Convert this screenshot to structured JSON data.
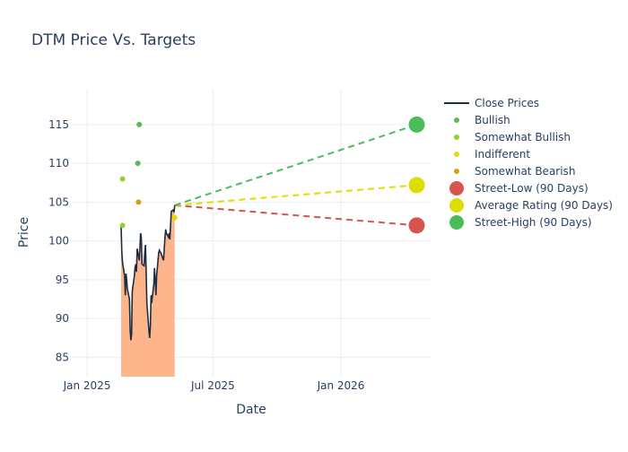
{
  "chart_data": {
    "type": "line",
    "title": "DTM Price Vs. Targets",
    "xlabel": "Date",
    "ylabel": "Price",
    "xlim": [
      "2024-12-10",
      "2026-05-10"
    ],
    "ylim": [
      82.5,
      119.5
    ],
    "x_ticks": [
      {
        "date": "2025-01-01",
        "label": "Jan 2025"
      },
      {
        "date": "2025-07-01",
        "label": "Jul 2025"
      },
      {
        "date": "2026-01-01",
        "label": "Jan 2026"
      }
    ],
    "y_ticks": [
      85,
      90,
      95,
      100,
      105,
      110,
      115
    ],
    "grid": true,
    "legend_position": "right",
    "series": [
      {
        "name": "Close Prices",
        "kind": "line",
        "color": "#1f2d3d",
        "fill_color": "#ffb58c",
        "points": [
          [
            "2025-02-19",
            101.8
          ],
          [
            "2025-02-20",
            98.5
          ],
          [
            "2025-02-21",
            97.2
          ],
          [
            "2025-02-24",
            95.5
          ],
          [
            "2025-02-25",
            93.0
          ],
          [
            "2025-02-26",
            95.8
          ],
          [
            "2025-02-27",
            95.0
          ],
          [
            "2025-02-28",
            93.8
          ],
          [
            "2025-03-03",
            92.5
          ],
          [
            "2025-03-04",
            88.5
          ],
          [
            "2025-03-05",
            87.2
          ],
          [
            "2025-03-06",
            88.0
          ],
          [
            "2025-03-07",
            93.5
          ],
          [
            "2025-03-10",
            95.5
          ],
          [
            "2025-03-11",
            96.5
          ],
          [
            "2025-03-12",
            97.0
          ],
          [
            "2025-03-13",
            96.0
          ],
          [
            "2025-03-14",
            99.0
          ],
          [
            "2025-03-17",
            97.5
          ],
          [
            "2025-03-18",
            99.2
          ],
          [
            "2025-03-19",
            101.0
          ],
          [
            "2025-03-20",
            100.5
          ],
          [
            "2025-03-21",
            97.0
          ],
          [
            "2025-03-24",
            96.8
          ],
          [
            "2025-03-25",
            98.5
          ],
          [
            "2025-03-26",
            99.5
          ],
          [
            "2025-03-27",
            96.0
          ],
          [
            "2025-03-28",
            92.0
          ],
          [
            "2025-03-31",
            88.5
          ],
          [
            "2025-04-01",
            87.5
          ],
          [
            "2025-04-02",
            89.0
          ],
          [
            "2025-04-03",
            93.0
          ],
          [
            "2025-04-04",
            92.0
          ],
          [
            "2025-04-07",
            94.5
          ],
          [
            "2025-04-08",
            96.5
          ],
          [
            "2025-04-09",
            95.0
          ],
          [
            "2025-04-10",
            93.0
          ],
          [
            "2025-04-11",
            95.5
          ],
          [
            "2025-04-14",
            98.5
          ],
          [
            "2025-04-15",
            98.8
          ],
          [
            "2025-04-16",
            98.6
          ],
          [
            "2025-04-17",
            98.5
          ],
          [
            "2025-04-21",
            97.5
          ],
          [
            "2025-04-22",
            99.0
          ],
          [
            "2025-04-23",
            100.5
          ],
          [
            "2025-04-24",
            101.5
          ],
          [
            "2025-04-25",
            101.0
          ],
          [
            "2025-04-28",
            100.5
          ],
          [
            "2025-04-29",
            101.0
          ],
          [
            "2025-04-30",
            100.2
          ],
          [
            "2025-05-01",
            102.0
          ],
          [
            "2025-05-02",
            103.8
          ],
          [
            "2025-05-05",
            104.0
          ],
          [
            "2025-05-06",
            103.7
          ],
          [
            "2025-05-07",
            104.6
          ]
        ]
      },
      {
        "name": "Bullish",
        "kind": "markers",
        "color": "#5cb85c",
        "points": [
          [
            "2025-03-15",
            110.0
          ],
          [
            "2025-03-17",
            115.0
          ]
        ]
      },
      {
        "name": "Somewhat Bullish",
        "kind": "markers",
        "color": "#9acd32",
        "points": [
          [
            "2025-02-21",
            108.0
          ],
          [
            "2025-02-21",
            102.0
          ]
        ]
      },
      {
        "name": "Indifferent",
        "kind": "markers",
        "color": "#e0e000",
        "points": [
          [
            "2025-05-07",
            103.0
          ]
        ]
      },
      {
        "name": "Somewhat Bearish",
        "kind": "markers",
        "color": "#d4a017",
        "points": [
          [
            "2025-03-16",
            105.0
          ]
        ]
      },
      {
        "name": "Street-Low (90 Days)",
        "kind": "target",
        "color": "#d9534f",
        "from": [
          "2025-05-07",
          104.6
        ],
        "to": [
          "2026-04-20",
          102.0
        ]
      },
      {
        "name": "Average Rating (90 Days)",
        "kind": "target",
        "color": "#dddd00",
        "from": [
          "2025-05-07",
          104.6
        ],
        "to": [
          "2026-04-20",
          107.2
        ]
      },
      {
        "name": "Street-High (90 Days)",
        "kind": "target",
        "color": "#4cbb5a",
        "from": [
          "2025-05-07",
          104.6
        ],
        "to": [
          "2026-04-20",
          115.0
        ]
      }
    ]
  }
}
